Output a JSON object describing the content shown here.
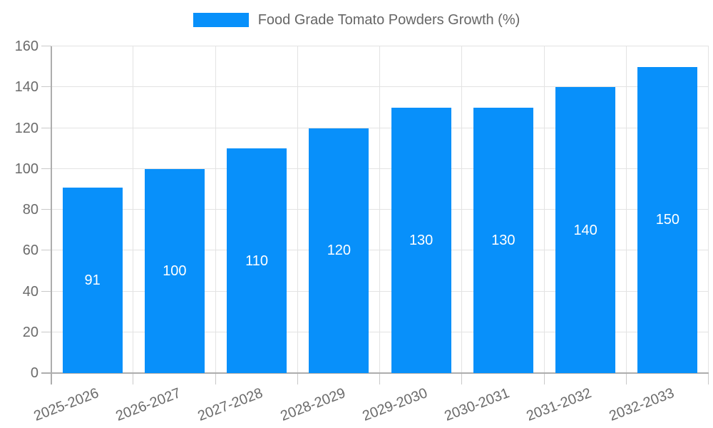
{
  "chart_data": {
    "type": "bar",
    "title": "",
    "legend": {
      "label": "Food Grade Tomato Powders Growth (%)",
      "position": "top"
    },
    "categories": [
      "2025-2026",
      "2026-2027",
      "2027-2028",
      "2028-2029",
      "2029-2030",
      "2030-2031",
      "2031-2032",
      "2032-2033"
    ],
    "series": [
      {
        "name": "Food Grade Tomato Powders Growth (%)",
        "values": [
          91,
          100,
          110,
          120,
          130,
          130,
          140,
          150
        ]
      }
    ],
    "xlabel": "",
    "ylabel": "",
    "ylim": [
      0,
      160
    ],
    "y_ticks": [
      0,
      20,
      40,
      60,
      80,
      100,
      120,
      140,
      160
    ],
    "grid": true,
    "bar_labels_shown": true,
    "colors": {
      "bar": "#0890fa",
      "bar_value_label": "#ffffff",
      "axis_text": "#6b6b6b",
      "legend_text": "#666666",
      "grid_line": "#e3e3e3",
      "tick_mark": "#c9c9c9",
      "axis_line": "#adadad",
      "background": "#ffffff"
    }
  }
}
